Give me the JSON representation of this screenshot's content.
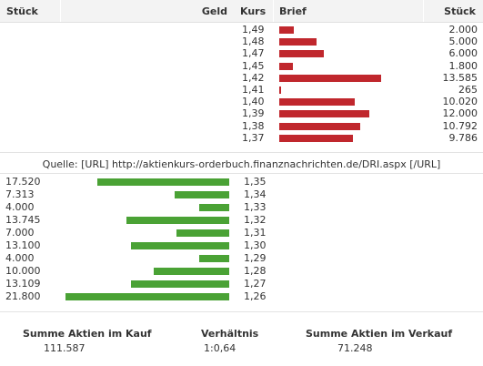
{
  "header": {
    "stueck_left": "Stück",
    "geld": "Geld",
    "kurs": "Kurs",
    "brief": "Brief",
    "stueck_right": "Stück"
  },
  "colors": {
    "brief_bar": "#c0272d",
    "geld_bar": "#4aa235"
  },
  "brief_max": 13585,
  "geld_max": 21800,
  "brief": [
    {
      "kurs": "1,49",
      "stueck": "2.000",
      "value": 2000
    },
    {
      "kurs": "1,48",
      "stueck": "5.000",
      "value": 5000
    },
    {
      "kurs": "1,47",
      "stueck": "6.000",
      "value": 6000
    },
    {
      "kurs": "1,45",
      "stueck": "1.800",
      "value": 1800
    },
    {
      "kurs": "1,42",
      "stueck": "13.585",
      "value": 13585
    },
    {
      "kurs": "1,41",
      "stueck": "265",
      "value": 265
    },
    {
      "kurs": "1,40",
      "stueck": "10.020",
      "value": 10020
    },
    {
      "kurs": "1,39",
      "stueck": "12.000",
      "value": 12000
    },
    {
      "kurs": "1,38",
      "stueck": "10.792",
      "value": 10792
    },
    {
      "kurs": "1,37",
      "stueck": "9.786",
      "value": 9786
    }
  ],
  "source": "Quelle: [URL] http://aktienkurs-orderbuch.finanznachrichten.de/DRI.aspx [/URL]",
  "geld": [
    {
      "kurs": "1,35",
      "stueck": "17.520",
      "value": 17520
    },
    {
      "kurs": "1,34",
      "stueck": "7.313",
      "value": 7313
    },
    {
      "kurs": "1,33",
      "stueck": "4.000",
      "value": 4000
    },
    {
      "kurs": "1,32",
      "stueck": "13.745",
      "value": 13745
    },
    {
      "kurs": "1,31",
      "stueck": "7.000",
      "value": 7000
    },
    {
      "kurs": "1,30",
      "stueck": "13.100",
      "value": 13100
    },
    {
      "kurs": "1,29",
      "stueck": "4.000",
      "value": 4000
    },
    {
      "kurs": "1,28",
      "stueck": "10.000",
      "value": 10000
    },
    {
      "kurs": "1,27",
      "stueck": "13.109",
      "value": 13109
    },
    {
      "kurs": "1,26",
      "stueck": "21.800",
      "value": 21800
    }
  ],
  "summary": {
    "kauf_label": "Summe Aktien im Kauf",
    "kauf_value": "111.587",
    "verhaeltnis_label": "Verhältnis",
    "verhaeltnis_value": "1:0,64",
    "verkauf_label": "Summe Aktien im Verkauf",
    "verkauf_value": "71.248"
  }
}
